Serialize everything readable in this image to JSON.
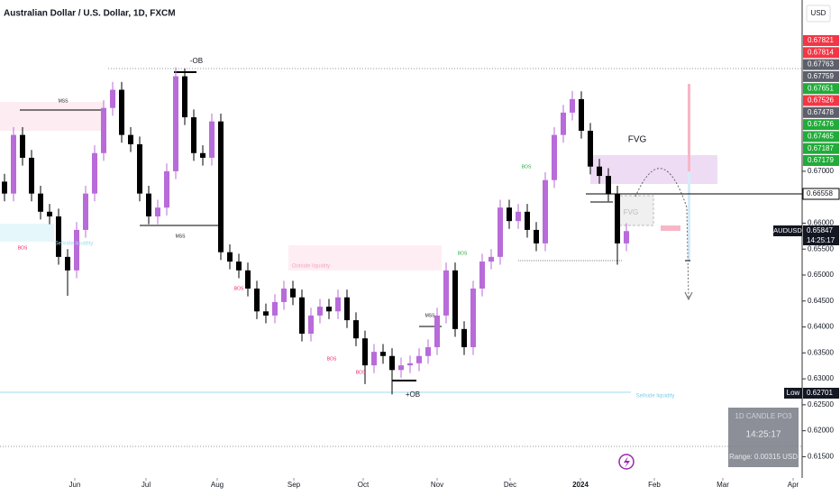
{
  "chart_data": {
    "type": "candlestick",
    "title": "Australian Dollar / U.S. Dollar, 1D, FXCM",
    "currency": "USD",
    "up_color": "#b86bd9",
    "down_color": "#000000",
    "open": [
      0.668,
      0.6657,
      0.677,
      0.6726,
      0.6657,
      0.6622,
      0.6613,
      0.6535,
      0.6509,
      0.6587,
      0.6657,
      0.6735,
      0.6822,
      0.6857,
      0.677,
      0.6752,
      0.6657,
      0.6613,
      0.663,
      0.67,
      0.6883,
      0.6804,
      0.6735,
      0.6726,
      0.6796,
      0.6544,
      0.6526,
      0.6509,
      0.6474,
      0.643,
      0.6422,
      0.6448,
      0.6474,
      0.6457,
      0.6387,
      0.6422,
      0.6439,
      0.643,
      0.6457,
      0.6413,
      0.6378,
      0.6326,
      0.6352,
      0.6344,
      0.6317,
      0.6326,
      0.633,
      0.6344,
      0.6361,
      0.6422,
      0.6509,
      0.6396,
      0.6361,
      0.6474,
      0.6526,
      0.6535,
      0.663,
      0.6604,
      0.6622,
      0.6587,
      0.6561,
      0.6683,
      0.677,
      0.6813,
      0.6839,
      0.6778,
      0.6709,
      0.6691,
      0.6657,
      0.6561
    ],
    "high": [
      0.6695,
      0.6785,
      0.6785,
      0.6741,
      0.6672,
      0.6637,
      0.6628,
      0.655,
      0.6602,
      0.6672,
      0.675,
      0.6837,
      0.6872,
      0.6872,
      0.6785,
      0.6767,
      0.6672,
      0.6645,
      0.6715,
      0.69,
      0.6898,
      0.6819,
      0.675,
      0.6811,
      0.6811,
      0.6559,
      0.6541,
      0.6524,
      0.6489,
      0.6445,
      0.6463,
      0.6489,
      0.6489,
      0.6472,
      0.6437,
      0.6454,
      0.6454,
      0.6472,
      0.6472,
      0.6428,
      0.6393,
      0.6367,
      0.6367,
      0.6359,
      0.6341,
      0.6345,
      0.6359,
      0.6376,
      0.6437,
      0.6524,
      0.6524,
      0.6411,
      0.6489,
      0.6541,
      0.655,
      0.6645,
      0.6645,
      0.6637,
      0.6637,
      0.6602,
      0.6698,
      0.6785,
      0.6828,
      0.6855,
      0.6854,
      0.6793,
      0.6724,
      0.6706,
      0.6672,
      0.66
    ],
    "low": [
      0.6642,
      0.6642,
      0.6711,
      0.6642,
      0.6607,
      0.6598,
      0.652,
      0.646,
      0.6494,
      0.6572,
      0.6642,
      0.672,
      0.6807,
      0.6755,
      0.6737,
      0.6642,
      0.6598,
      0.6598,
      0.6615,
      0.6685,
      0.6789,
      0.672,
      0.6711,
      0.6711,
      0.6529,
      0.6511,
      0.6494,
      0.6459,
      0.6415,
      0.6407,
      0.6407,
      0.6433,
      0.6442,
      0.6372,
      0.6372,
      0.6407,
      0.6415,
      0.6415,
      0.6398,
      0.6363,
      0.629,
      0.6311,
      0.6329,
      0.627,
      0.6302,
      0.6311,
      0.6315,
      0.6329,
      0.6346,
      0.6407,
      0.6381,
      0.6346,
      0.6346,
      0.6459,
      0.6511,
      0.652,
      0.6589,
      0.6589,
      0.6572,
      0.6546,
      0.6546,
      0.6668,
      0.6755,
      0.6798,
      0.6763,
      0.6694,
      0.6676,
      0.6642,
      0.652,
      0.6546
    ],
    "close": [
      0.6657,
      0.677,
      0.6726,
      0.6657,
      0.6622,
      0.6613,
      0.6535,
      0.6509,
      0.6587,
      0.6657,
      0.6735,
      0.6822,
      0.6857,
      0.677,
      0.6752,
      0.6657,
      0.6613,
      0.663,
      0.67,
      0.6883,
      0.6804,
      0.6735,
      0.6726,
      0.6796,
      0.6544,
      0.6526,
      0.6509,
      0.6474,
      0.643,
      0.6422,
      0.6448,
      0.6474,
      0.6457,
      0.6387,
      0.6422,
      0.6439,
      0.643,
      0.6457,
      0.6413,
      0.6378,
      0.6326,
      0.6352,
      0.6344,
      0.6317,
      0.6326,
      0.633,
      0.6344,
      0.6361,
      0.6422,
      0.6509,
      0.6396,
      0.6361,
      0.6474,
      0.6526,
      0.6535,
      0.663,
      0.6604,
      0.6622,
      0.6587,
      0.6561,
      0.6683,
      0.677,
      0.6813,
      0.6839,
      0.6778,
      0.6709,
      0.6691,
      0.6657,
      0.6561,
      0.65847
    ],
    "xlim": [
      -0.5,
      88.5
    ],
    "xticks": [
      {
        "value": 7.8,
        "label": "Jun"
      },
      {
        "value": 15.7,
        "label": "Jul"
      },
      {
        "value": 23.6,
        "label": "Aug"
      },
      {
        "value": 32.1,
        "label": "Sep"
      },
      {
        "value": 39.8,
        "label": "Oct"
      },
      {
        "value": 48,
        "label": "Nov"
      },
      {
        "value": 56.1,
        "label": "Dec"
      },
      {
        "value": 63.9,
        "label": "2024"
      },
      {
        "value": 72.1,
        "label": "Feb"
      },
      {
        "value": 79.7,
        "label": "Mar"
      },
      {
        "value": 87.5,
        "label": "Apr"
      }
    ],
    "ylim": [
      0.6109,
      0.703
    ],
    "yticks": [
      {
        "value": 0.615,
        "label": "0.61500"
      },
      {
        "value": 0.62,
        "label": "0.62000"
      },
      {
        "value": 0.625,
        "label": "0.62500"
      },
      {
        "value": 0.63,
        "label": "0.63000"
      },
      {
        "value": 0.635,
        "label": "0.63500"
      },
      {
        "value": 0.64,
        "label": "0.64000"
      },
      {
        "value": 0.645,
        "label": "0.64500"
      },
      {
        "value": 0.65,
        "label": "0.65000"
      },
      {
        "value": 0.655,
        "label": "0.65500"
      },
      {
        "value": 0.66,
        "label": "0.66000"
      },
      {
        "value": 0.67,
        "label": "0.67000"
      }
    ],
    "price_labels": [
      {
        "value": 0.67821,
        "color": "#f23645"
      },
      {
        "value": 0.67814,
        "color": "#f23645"
      },
      {
        "value": 0.67763,
        "color": "#5d606b"
      },
      {
        "value": 0.67759,
        "color": "#5d606b"
      },
      {
        "value": 0.67651,
        "color": "#22ab3a"
      },
      {
        "value": 0.67526,
        "color": "#f23645"
      },
      {
        "value": 0.67478,
        "color": "#5d606b"
      },
      {
        "value": 0.67476,
        "color": "#22ab3a"
      },
      {
        "value": 0.67465,
        "color": "#22ab3a"
      },
      {
        "value": 0.67187,
        "color": "#22ab3a"
      },
      {
        "value": 0.67179,
        "color": "#22ab3a"
      }
    ],
    "level_label": 0.66558,
    "last_price": {
      "name": "AUDUSD",
      "value": 0.65847,
      "countdown": "14:25:17"
    },
    "low_label": {
      "name": "Low",
      "value": 0.62701
    },
    "annotations": [
      "-OB",
      "+OB",
      "MSS",
      "MSS",
      "MSS",
      "BOS",
      "BOS",
      "BOS",
      "BOS",
      "BOS",
      "BOS",
      "FVG",
      "FVG",
      "Sellside liquidity",
      "Sellside liquidity",
      "Outside liquidity"
    ],
    "info_box": {
      "title": "1D CANDLE PO3",
      "countdown": "14:25:17",
      "range": "Range: 0.00315 USD"
    }
  }
}
